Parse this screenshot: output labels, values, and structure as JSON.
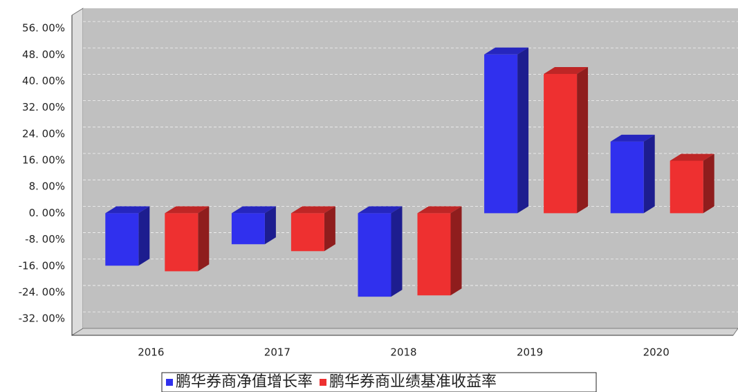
{
  "chart_data": {
    "type": "bar3d",
    "categories": [
      "2016",
      "2017",
      "2018",
      "2019",
      "2020"
    ],
    "series": [
      {
        "name": "鹏华券商净值增长率",
        "color": "#3030ee",
        "values": [
          -15.9,
          -9.4,
          -25.3,
          48.1,
          21.7
        ]
      },
      {
        "name": "鹏华券商业绩基准收益率",
        "color": "#ee3030",
        "values": [
          -17.6,
          -11.5,
          -24.9,
          42.2,
          15.9
        ]
      }
    ],
    "ylim": [
      -37,
      60
    ],
    "yticks": [
      {
        "value": 56,
        "label": "56. 00%"
      },
      {
        "value": 48,
        "label": "48. 00%"
      },
      {
        "value": 40,
        "label": "40. 00%"
      },
      {
        "value": 32,
        "label": "32. 00%"
      },
      {
        "value": 24,
        "label": "24. 00%"
      },
      {
        "value": 16,
        "label": "16. 00%"
      },
      {
        "value": 8,
        "label": "8. 00%"
      },
      {
        "value": 0,
        "label": "0. 00%"
      },
      {
        "value": -8,
        "label": "-8. 00%"
      },
      {
        "value": -16,
        "label": "-16. 00%"
      },
      {
        "value": -24,
        "label": "-24. 00%"
      },
      {
        "value": -32,
        "label": "-32. 00%"
      }
    ],
    "grid": true
  }
}
